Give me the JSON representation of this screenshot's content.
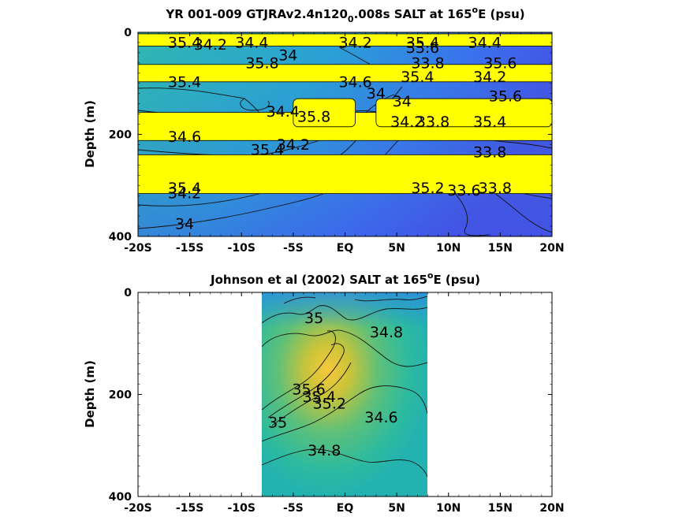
{
  "chart_data": [
    {
      "type": "heatmap",
      "title_pre": "YR 001-009 GTJRAv2.4n120",
      "title_sub": "0",
      "title_mid": ".008s SALT at 165",
      "title_sup": "o",
      "title_post": "E (psu)",
      "ylabel": "Depth (m)",
      "xlim": [
        -20,
        20
      ],
      "ylim": [
        0,
        400
      ],
      "x_ticks": [
        "-20S",
        "-15S",
        "-10S",
        "-5S",
        "EQ",
        "5N",
        "10N",
        "15N",
        "20N"
      ],
      "y_ticks": [
        "0",
        "200",
        "400"
      ],
      "mask_color": "#ffff00",
      "masked_depth_bands": [
        [
          3,
          27
        ],
        [
          63,
          97
        ],
        [
          157,
          212
        ],
        [
          240,
          316
        ]
      ],
      "masked_boxes": [
        [
          -5,
          1,
          130,
          185
        ],
        [
          3,
          20,
          130,
          185
        ]
      ],
      "contour_labels": [
        {
          "x": -15.5,
          "y": 30,
          "text": "35.4"
        },
        {
          "x": -13.0,
          "y": 34,
          "text": "34.2"
        },
        {
          "x": -9.0,
          "y": 30,
          "text": "34.4"
        },
        {
          "x": -5.5,
          "y": 55,
          "text": "34"
        },
        {
          "x": 1.0,
          "y": 30,
          "text": "34.2"
        },
        {
          "x": 7.5,
          "y": 30,
          "text": "35.4"
        },
        {
          "x": 7.5,
          "y": 40,
          "text": "33.6"
        },
        {
          "x": 13.5,
          "y": 30,
          "text": "34.4"
        },
        {
          "x": -8.0,
          "y": 70,
          "text": "35.8"
        },
        {
          "x": 8.0,
          "y": 70,
          "text": "33.8"
        },
        {
          "x": 15.0,
          "y": 70,
          "text": "35.6"
        },
        {
          "x": -15.5,
          "y": 107,
          "text": "35.4"
        },
        {
          "x": 1.0,
          "y": 107,
          "text": "34.6"
        },
        {
          "x": 7.0,
          "y": 97,
          "text": "35.4"
        },
        {
          "x": 14.0,
          "y": 97,
          "text": "34.2"
        },
        {
          "x": 3.0,
          "y": 130,
          "text": "34"
        },
        {
          "x": 5.5,
          "y": 145,
          "text": "34"
        },
        {
          "x": -6.0,
          "y": 165,
          "text": "34.4"
        },
        {
          "x": -3.0,
          "y": 175,
          "text": "35.8"
        },
        {
          "x": 6.0,
          "y": 185,
          "text": "34.2"
        },
        {
          "x": 8.5,
          "y": 185,
          "text": "33.8"
        },
        {
          "x": 14.0,
          "y": 185,
          "text": "35.4"
        },
        {
          "x": 15.5,
          "y": 135,
          "text": "35.6"
        },
        {
          "x": -15.5,
          "y": 215,
          "text": "34.6"
        },
        {
          "x": -7.5,
          "y": 240,
          "text": "35.4"
        },
        {
          "x": -5.0,
          "y": 230,
          "text": "34.2"
        },
        {
          "x": 14.0,
          "y": 245,
          "text": "33.8"
        },
        {
          "x": -15.5,
          "y": 315,
          "text": "35.4"
        },
        {
          "x": -15.5,
          "y": 325,
          "text": "34.2"
        },
        {
          "x": 8.0,
          "y": 315,
          "text": "35.2"
        },
        {
          "x": 11.5,
          "y": 320,
          "text": "33.6"
        },
        {
          "x": 14.5,
          "y": 315,
          "text": "33.8"
        },
        {
          "x": -15.5,
          "y": 385,
          "text": "34"
        }
      ]
    },
    {
      "type": "heatmap",
      "title_pre": "Johnson et al (2002) SALT at 165",
      "title_sup": "o",
      "title_post": "E (psu)",
      "ylabel": "Depth (m)",
      "xlim": [
        -20,
        20
      ],
      "ylim": [
        0,
        400
      ],
      "data_xrange": [
        -8,
        8
      ],
      "x_ticks": [
        "-20S",
        "-15S",
        "-10S",
        "-5S",
        "EQ",
        "5N",
        "10N",
        "15N",
        "20N"
      ],
      "y_ticks": [
        "0",
        "200",
        "400"
      ],
      "salinity_max": 35.6,
      "salinity_max_location": {
        "x": -2.5,
        "y": 160
      },
      "contour_labels": [
        {
          "x": -3.0,
          "y": 60,
          "text": "35"
        },
        {
          "x": 4.0,
          "y": 88,
          "text": "34.8"
        },
        {
          "x": -3.5,
          "y": 200,
          "text": "35.6"
        },
        {
          "x": -2.5,
          "y": 215,
          "text": "35.4"
        },
        {
          "x": -1.5,
          "y": 228,
          "text": "35.2"
        },
        {
          "x": -6.5,
          "y": 265,
          "text": "35"
        },
        {
          "x": 3.5,
          "y": 255,
          "text": "34.6"
        },
        {
          "x": -2.0,
          "y": 320,
          "text": "34.8"
        }
      ]
    }
  ]
}
